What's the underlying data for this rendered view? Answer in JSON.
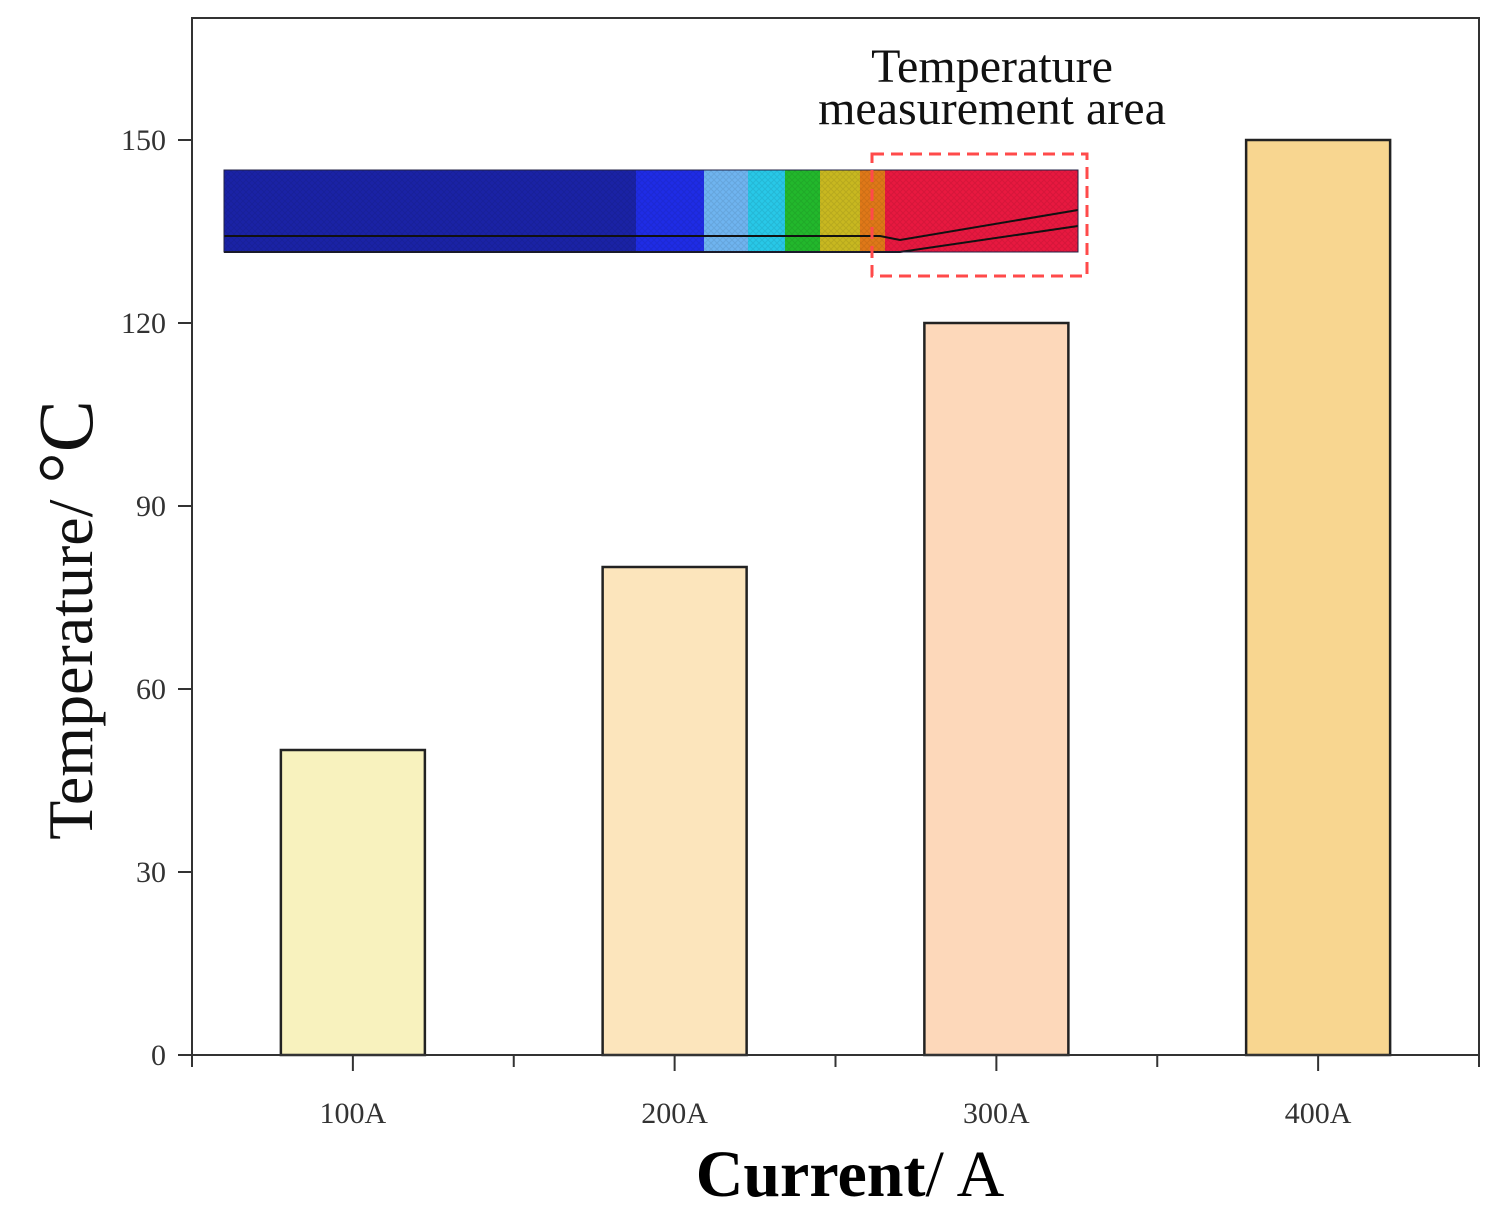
{
  "chart_data": {
    "type": "bar",
    "categories": [
      "100A",
      "200A",
      "300A",
      "400A"
    ],
    "values": [
      50,
      80,
      120,
      150
    ],
    "bar_colors": [
      "#F8F2BE",
      "#FCE5BC",
      "#FDD8BA",
      "#F8D690"
    ],
    "xlabel_bold": "Current",
    "xlabel_rest": "/ A",
    "ylabel_main": "Temperature/ ",
    "ylabel_unit": "°C",
    "yticks": [
      0,
      30,
      60,
      90,
      120,
      150
    ],
    "ylim": [
      0,
      170
    ],
    "grid": false,
    "annotation": {
      "line1": "Temperature",
      "line2": "measurement area",
      "box_color": "#FF4A4A"
    },
    "inset_colors": [
      "#1A22A6",
      "#1F2CE6",
      "#6FB4F0",
      "#28C8E8",
      "#22B82C",
      "#C8B820",
      "#E07818",
      "#E81840"
    ]
  }
}
